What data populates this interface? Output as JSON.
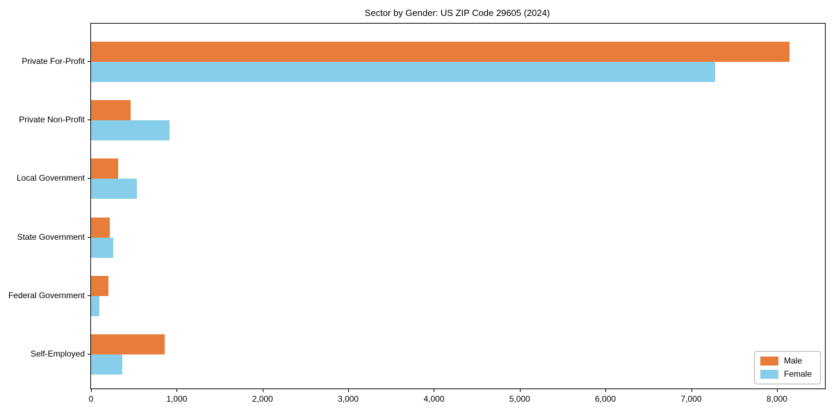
{
  "title": "Sector by Gender: US ZIP Code 29605 (2024)",
  "colors": {
    "male": "#e87d3a",
    "female": "#87ceeb",
    "axis": "#000000",
    "legend_border": "#b3b3b3"
  },
  "legend": {
    "position": "lower right",
    "items": [
      {
        "label": "Male",
        "color": "#e87d3a"
      },
      {
        "label": "Female",
        "color": "#87ceeb"
      }
    ]
  },
  "chart_data": {
    "type": "bar",
    "orientation": "horizontal",
    "title": "Sector by Gender: US ZIP Code 29605 (2024)",
    "categories": [
      "Private For-Profit",
      "Private Non-Profit",
      "Local Government",
      "State Government",
      "Federal Government",
      "Self-Employed"
    ],
    "series": [
      {
        "name": "Male",
        "color": "#e87d3a",
        "values": [
          8145,
          460,
          315,
          220,
          200,
          860
        ]
      },
      {
        "name": "Female",
        "color": "#87ceeb",
        "values": [
          7280,
          915,
          535,
          260,
          95,
          365
        ]
      }
    ],
    "xlabel": "",
    "ylabel": "",
    "xlim": [
      0,
      8560
    ],
    "xticks": [
      0,
      1000,
      2000,
      3000,
      4000,
      5000,
      6000,
      7000,
      8000
    ],
    "xtick_labels": [
      "0",
      "1,000",
      "2,000",
      "3,000",
      "4,000",
      "5,000",
      "6,000",
      "7,000",
      "8,000"
    ],
    "grid": false,
    "legend_position": "lower right"
  }
}
